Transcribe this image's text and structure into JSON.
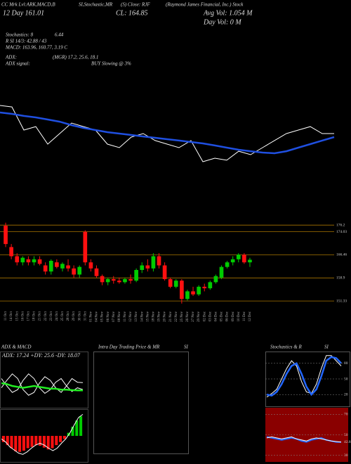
{
  "header": [
    "CC Mrk Lvl:ARK,MACD,B",
    "SI,Stochastic,MR",
    "(S) Close: RJF",
    "(Raymond James Financial, Inc.) Stock",
    "12 Day 161.01",
    "CL: 164.85",
    "Avg Vol: 1.054 M",
    "Day Vol: 0  M",
    "Stochastics: 8",
    "6.44",
    "R SI 14/3: 42.88 / 43",
    "MACD: 163.96, 160.77, 3.19 C",
    "ADX:",
    "(MGR) 17.2, 25.6, 18.1",
    "ADX signal:",
    "BUY Slowing @ 3%"
  ],
  "panels": [
    "ADX & MACD",
    "Intra Day Trading Price & MR",
    "SI",
    "Stochastics & R",
    "SI",
    "ADX: 17.24  +DY: 25.6  -DY: 18.07"
  ],
  "chart_data": [
    {
      "type": "line",
      "ylim": [
        0,
        100
      ],
      "series": [
        {
          "color": "#ffffff",
          "width": 1,
          "values": [
            78.6,
            77.1,
            53.6,
            57.1,
            39.3,
            50,
            60.7,
            57.1,
            53.6,
            39.3,
            35.7,
            46.4,
            50,
            42.9,
            39.3,
            35.7,
            42.9,
            21.4,
            25,
            22.9,
            32.1,
            28.6,
            35.7,
            42.9,
            50,
            53.6,
            57.1,
            50,
            50
          ]
        },
        {
          "color": "#1f4fe0",
          "width": 2.5,
          "values": [
            71.4,
            70,
            67.9,
            66.4,
            64.3,
            62.1,
            58.6,
            55.7,
            53.6,
            51.4,
            50,
            48.6,
            47.1,
            45.7,
            44.3,
            42.9,
            41.4,
            40,
            37.9,
            35.7,
            33.6,
            32.1,
            30.7,
            30,
            32.1,
            35.7,
            39.3,
            42.9,
            46.4
          ]
        }
      ]
    },
    {
      "type": "candlestick",
      "up_color": "#00cc00",
      "down_color": "#ff1010",
      "grid": true,
      "grid_color": "#a87400",
      "ylim": [
        148.6,
        177.4
      ],
      "yticks": [
        176.2,
        174.03,
        166.46,
        158.9,
        151.33
      ],
      "categories": [
        "11 Oct",
        "14 Oct",
        "15 Oct",
        "16 Oct",
        "17 Oct",
        "18 Oct",
        "21 Oct",
        "22 Oct",
        "23 Oct",
        "24 Oct",
        "25 Oct",
        "28 Oct",
        "29 Oct",
        "30 Oct",
        "31 Oct",
        "01 Nov",
        "04 Nov",
        "05 Nov",
        "06 Nov",
        "07 Nov",
        "08 Nov",
        "11 Nov",
        "12 Nov",
        "13 Nov",
        "14 Nov",
        "15 Nov",
        "18 Nov",
        "19 Nov",
        "20 Nov",
        "21 Nov",
        "22 Nov",
        "25 Nov",
        "26 Nov",
        "27 Nov",
        "29 Nov",
        "02 Dec",
        "03 Dec",
        "04 Dec",
        "05 Dec",
        "06 Dec",
        "09 Dec",
        "10 Dec",
        "11 Dec",
        "12 Dec"
      ],
      "open": [
        176,
        169,
        166,
        164,
        165,
        164,
        165,
        163,
        161,
        164,
        162,
        163,
        162,
        160,
        174,
        164,
        162,
        159.5,
        157.5,
        158.5,
        158,
        157.5,
        158.5,
        158,
        161.5,
        163,
        162,
        166,
        163,
        158.5,
        156,
        158,
        152,
        154.5,
        153.5,
        156,
        155.5,
        157.5,
        159,
        162.5,
        164,
        165,
        166.5,
        164
      ],
      "high": [
        177,
        170,
        167,
        166,
        166,
        166,
        166,
        164,
        165,
        165,
        164,
        165,
        163,
        163,
        174.5,
        165,
        163,
        160,
        159,
        159.5,
        159,
        159,
        160,
        162,
        164,
        165,
        167,
        167,
        164,
        159,
        158.5,
        158.5,
        155,
        156,
        156.5,
        157,
        158,
        160,
        163,
        164.5,
        166,
        167,
        167,
        165.5
      ],
      "low": [
        169,
        165,
        163,
        163,
        163,
        163,
        163,
        160,
        160,
        162,
        161,
        161,
        159,
        159,
        163,
        161,
        159,
        156.5,
        156.5,
        157,
        157,
        157,
        157,
        157.5,
        160.5,
        161,
        161,
        162,
        158,
        155.5,
        155.5,
        150.5,
        151.5,
        153,
        153,
        154.5,
        155,
        157,
        158.5,
        162,
        163,
        164,
        163.5,
        162.5
      ],
      "close": [
        170,
        166,
        164,
        165.5,
        164,
        165,
        163.5,
        161,
        164.5,
        162.5,
        163.5,
        162,
        160,
        162.5,
        164,
        162,
        159.5,
        157.5,
        158.5,
        158,
        157.5,
        158.5,
        158,
        161.5,
        163,
        162,
        166,
        163,
        158.5,
        156,
        158,
        152,
        154.5,
        153.5,
        156,
        155.5,
        157.5,
        159.5,
        162.5,
        164,
        165,
        166.5,
        164,
        164.85
      ]
    },
    {
      "type": "line",
      "ylim": [
        0,
        50
      ],
      "series": [
        {
          "color": "#ffffff",
          "width": 1,
          "values": [
            20,
            28,
            35,
            30,
            18,
            12,
            15,
            25,
            32,
            28,
            20,
            15,
            22,
            30,
            26,
            25.6
          ]
        },
        {
          "color": "#ffffff",
          "width": 1,
          "values": [
            30,
            22,
            15,
            18,
            28,
            35,
            30,
            20,
            14,
            18,
            26,
            30,
            22,
            16,
            20,
            18.07
          ]
        },
        {
          "color": "#22ee22",
          "width": 2.5,
          "values": [
            25,
            24,
            22,
            21,
            20,
            21,
            22,
            21,
            20,
            19,
            19,
            18,
            18,
            17.5,
            17.3,
            17.24
          ]
        }
      ]
    },
    {
      "type": "macd",
      "ylim": [
        -4,
        4
      ],
      "up_color": "#00cc00",
      "down_color": "#ff1010",
      "values": [
        -1,
        -1.5,
        -2,
        -2.5,
        -2.6,
        -2.4,
        -2,
        -1.8,
        -1.5,
        -1.6,
        -1.9,
        -2.2,
        -2,
        -1.5,
        -1,
        -0.5,
        0.5,
        1.5,
        2.5,
        3.19
      ],
      "series": [
        {
          "color": "#ffffff",
          "width": 1,
          "values": [
            -0.5,
            -1,
            -1.8,
            -2.3,
            -2.8,
            -3,
            -2.6,
            -2,
            -1.5,
            -1.2,
            -1.5,
            -2,
            -2.4,
            -2,
            -1.2,
            -0.5,
            0.5,
            1.8,
            3,
            3.5
          ]
        }
      ]
    },
    {
      "type": "line",
      "ylim": [
        0,
        100
      ],
      "yticks": [
        20,
        50,
        80
      ],
      "series": [
        {
          "color": "#ffffff",
          "width": 1,
          "values": [
            15,
            22,
            30,
            50,
            70,
            85,
            75,
            45,
            25,
            22,
            40,
            70,
            95,
            95,
            85,
            75
          ]
        },
        {
          "color": "#2266ff",
          "width": 2.5,
          "values": [
            20,
            18,
            25,
            40,
            60,
            75,
            80,
            60,
            35,
            20,
            30,
            55,
            85,
            92,
            90,
            80
          ]
        }
      ]
    },
    {
      "type": "line",
      "ylim": [
        25,
        75
      ],
      "yticks": [
        30,
        50,
        70
      ],
      "background": "#8a0000",
      "series": [
        {
          "color": "#2266ff",
          "width": 2,
          "values": [
            48,
            47,
            46,
            45,
            46,
            47,
            46,
            44,
            43,
            45,
            46,
            47,
            45,
            44,
            43,
            42.88
          ]
        },
        {
          "color": "#ffffff",
          "width": 1,
          "values": [
            47,
            48,
            47,
            46,
            47,
            48,
            46,
            45,
            44,
            46,
            47,
            46,
            45,
            44,
            43.5,
            43
          ]
        }
      ]
    }
  ]
}
